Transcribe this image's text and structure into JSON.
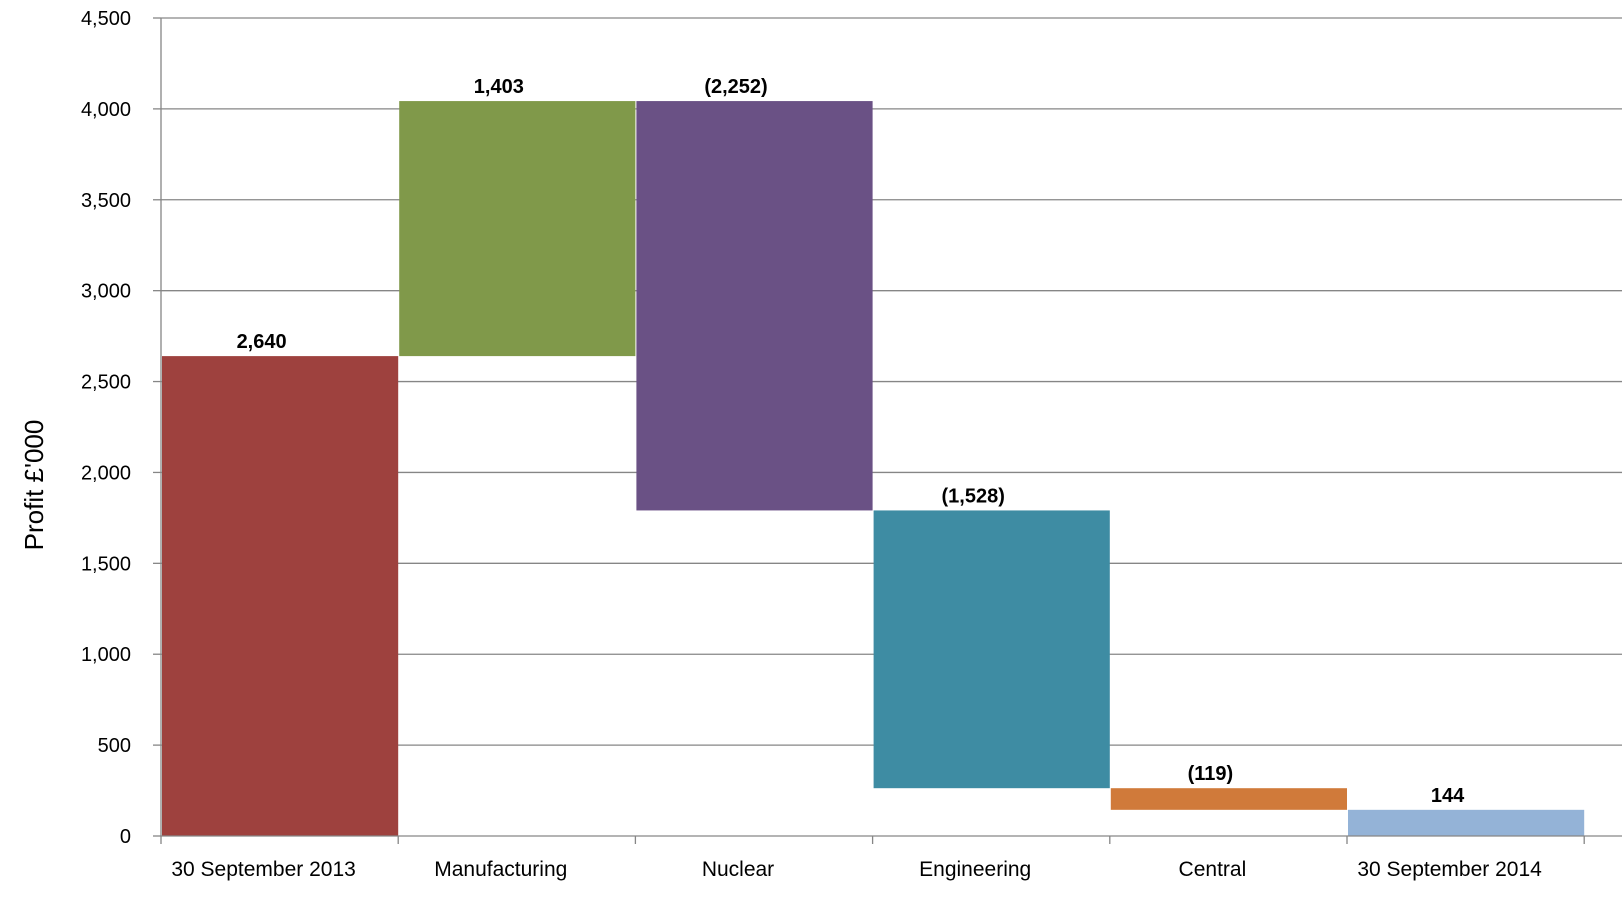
{
  "chart_data": {
    "type": "bar",
    "subtype": "waterfall",
    "categories": [
      "30 September 2013",
      "Manufacturing",
      "Nuclear",
      "Engineering",
      "Central",
      "30 September 2014"
    ],
    "values": [
      2640,
      1403,
      -2252,
      -1528,
      -119,
      144
    ],
    "data_labels": [
      "2,640",
      "1,403",
      "(2,252)",
      "(1,528)",
      "(119)",
      "144"
    ],
    "bar_kinds": [
      "total",
      "delta",
      "delta",
      "delta",
      "delta",
      "total"
    ],
    "colors": [
      "#9E413E",
      "#80994A",
      "#6A5185",
      "#3E8CA3",
      "#D07A3A",
      "#94B3D7"
    ],
    "xlabel": "",
    "ylabel": "Profit  £'000",
    "ylim": [
      0,
      4500
    ],
    "yticks": [
      0,
      500,
      1000,
      1500,
      2000,
      2500,
      3000,
      3500,
      4000,
      4500
    ],
    "ytick_labels": [
      "0",
      "500",
      "1,000",
      "1,500",
      "2,000",
      "2,500",
      "3,000",
      "3,500",
      "4,000",
      "4,500"
    ],
    "grid": true,
    "legend": "none"
  }
}
